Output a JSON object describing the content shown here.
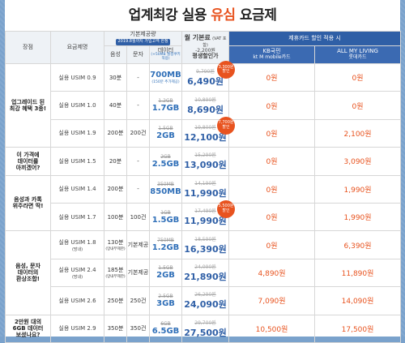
{
  "title": {
    "pre": "업계최강 실용 ",
    "hl": "유심",
    "post": " 요금제"
  },
  "header": {
    "feature": "장점",
    "plan_name": "요금제명",
    "basic": "기본제공량",
    "basic_badge": "2019.8월까지 가입고객 한정",
    "voice": "음성",
    "sms": "문자",
    "data": "데이터",
    "data_sub": "(+50MB 월정쿠키 적용)",
    "monthly": "월 기본료",
    "monthly_vat": "(VAT 포함)",
    "monthly_discount": "-2,200원",
    "monthly_sub": "평생할인가",
    "partner": "제휴카드 할인 적용 시",
    "kb": "KB국민",
    "kb2": "kt M mobile카드",
    "lotte": "ALL MY LIVING",
    "lotte2": "롯데카드"
  },
  "groups": [
    {
      "label": "업그레이드 된\n최강 혜택 3종!",
      "rows": 3
    },
    {
      "label": "이 가격에\n데이터를\n아끼겠어?",
      "rows": 1
    },
    {
      "label": "음성과 카톡\n위주라면 딱!",
      "rows": 2
    },
    {
      "label": "음성, 문자\n데이터의\n환상조합!",
      "rows": 3
    },
    {
      "label": "2만원 대의\n6GB 데이터\n보셨나요?",
      "rows": 1
    }
  ],
  "rows": [
    {
      "plan": "실용 USIM 0.9",
      "plan_sub": "",
      "voice": "30분",
      "voice_sub": "",
      "sms": "-",
      "data_old": "",
      "data_new": "700MB",
      "data_note": "(150분 추가제공)",
      "price_old": "9,790원",
      "price_new": "6,490원",
      "kb": "0원",
      "lotte": "0원",
      "bubble": "3,300원\n할인"
    },
    {
      "plan": "실용 USIM 1.0",
      "plan_sub": "",
      "voice": "40분",
      "voice_sub": "",
      "sms": "-",
      "data_old": "1.2GB",
      "data_new": "1.7GB",
      "data_note": "",
      "price_old": "10,890원",
      "price_new": "8,690원",
      "kb": "0원",
      "lotte": "0원",
      "bubble": ""
    },
    {
      "plan": "실용 USIM 1.9",
      "plan_sub": "",
      "voice": "200분",
      "voice_sub": "",
      "sms": "200건",
      "data_old": "1.5GB",
      "data_new": "2GB",
      "data_note": "",
      "price_old": "19,800원",
      "price_new": "12,100원",
      "kb": "0원",
      "lotte": "2,100원",
      "bubble": "7,700원\n할인"
    },
    {
      "plan": "실용 USIM 1.5",
      "plan_sub": "",
      "voice": "20분",
      "voice_sub": "",
      "sms": "-",
      "data_old": "2GB",
      "data_new": "2.5GB",
      "data_note": "",
      "price_old": "15,290원",
      "price_new": "13,090원",
      "kb": "0원",
      "lotte": "3,090원",
      "bubble": ""
    },
    {
      "plan": "실용 USIM 1.4",
      "plan_sub": "",
      "voice": "200분",
      "voice_sub": "",
      "sms": "-",
      "data_old": "350MB",
      "data_new": "850MB",
      "data_note": "",
      "price_old": "14,190원",
      "price_new": "11,990원",
      "kb": "0원",
      "lotte": "1,990원",
      "bubble": ""
    },
    {
      "plan": "실용 USIM 1.7",
      "plan_sub": "",
      "voice": "100분",
      "voice_sub": "",
      "sms": "100건",
      "data_old": "1GB",
      "data_new": "1.5GB",
      "data_note": "",
      "price_old": "17,490원",
      "price_new": "11,990원",
      "kb": "0원",
      "lotte": "1,990원",
      "bubble": "5,500원\n할인"
    },
    {
      "plan": "실용 USIM 1.8",
      "plan_sub": "(망내)",
      "voice": "130분",
      "voice_sub": "(망내무제한)",
      "sms": "기본제공",
      "data_old": "750MB",
      "data_new": "1.2GB",
      "data_note": "",
      "price_old": "18,590원",
      "price_new": "16,390원",
      "kb": "0원",
      "lotte": "6,390원",
      "bubble": ""
    },
    {
      "plan": "실용 USIM 2.4",
      "plan_sub": "(망내)",
      "voice": "185분",
      "voice_sub": "(망내무제한)",
      "sms": "기본제공",
      "data_old": "1.5GB",
      "data_new": "2GB",
      "data_note": "",
      "price_old": "24,090원",
      "price_new": "21,890원",
      "kb": "4,890원",
      "lotte": "11,890원",
      "bubble": ""
    },
    {
      "plan": "실용 USIM 2.6",
      "plan_sub": "",
      "voice": "250분",
      "voice_sub": "",
      "sms": "250건",
      "data_old": "2.5GB",
      "data_new": "3GB",
      "data_note": "",
      "price_old": "26,290원",
      "price_new": "24,090원",
      "kb": "7,090원",
      "lotte": "14,090원",
      "bubble": ""
    },
    {
      "plan": "실용 USIM 2.9",
      "plan_sub": "",
      "voice": "350분",
      "voice_sub": "",
      "sms": "350건",
      "data_old": "6GB",
      "data_new": "6.5GB",
      "data_note": "",
      "price_old": "29,700원",
      "price_new": "27,500원",
      "kb": "10,500원",
      "lotte": "17,500원",
      "bubble": ""
    }
  ]
}
